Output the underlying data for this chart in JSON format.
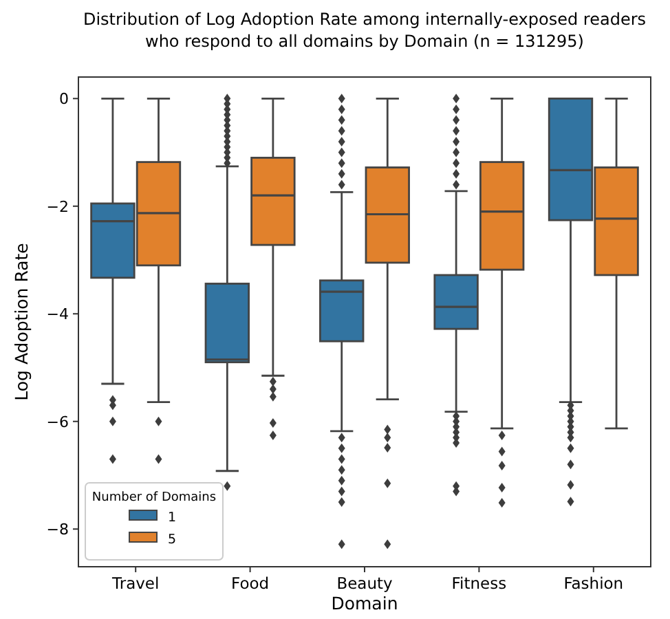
{
  "chart_data": {
    "type": "box",
    "title": "Distribution of Log Adoption Rate among internally-exposed readers\nwho respond to all domains by Domain (n = 131295)",
    "xlabel": "Domain",
    "ylabel": "Log Adoption Rate",
    "legend_title": "Number of Domains",
    "legend": "bottom left",
    "categories": [
      "Travel",
      "Food",
      "Beauty",
      "Fitness",
      "Fashion"
    ],
    "ylim": [
      -8.7,
      0.4
    ],
    "yticks": [
      0,
      {
        "value": -2,
        "label": "−2"
      },
      {
        "value": -4,
        "label": "−4"
      },
      {
        "value": -6,
        "label": "−6"
      },
      {
        "value": -8,
        "label": "−8"
      }
    ],
    "series": [
      {
        "name": "1",
        "color": "#3274a1",
        "boxes": [
          {
            "low": -5.3,
            "q1": -3.33,
            "median": -2.28,
            "q3": -1.95,
            "high": 0,
            "outliers": [
              -5.6,
              -5.7,
              -6.0,
              -6.7
            ]
          },
          {
            "low": -6.92,
            "q1": -4.9,
            "median": -4.85,
            "q3": -3.44,
            "high": -1.26,
            "outliers": [
              0,
              -0.1,
              -0.2,
              -0.3,
              -0.4,
              -0.5,
              -0.6,
              -0.7,
              -0.8,
              -0.9,
              -1.0,
              -1.1,
              -1.2,
              -7.2
            ]
          },
          {
            "low": -6.18,
            "q1": -4.51,
            "median": -3.59,
            "q3": -3.38,
            "high": -1.74,
            "outliers": [
              0,
              -0.2,
              -0.4,
              -0.6,
              -0.8,
              -1.0,
              -1.2,
              -1.4,
              -1.6,
              -6.3,
              -6.5,
              -6.7,
              -6.9,
              -7.1,
              -7.3,
              -7.5,
              -8.28
            ]
          },
          {
            "low": -5.82,
            "q1": -4.28,
            "median": -3.87,
            "q3": -3.28,
            "high": -1.72,
            "outliers": [
              0,
              -0.2,
              -0.4,
              -0.6,
              -0.8,
              -1.0,
              -1.2,
              -1.4,
              -1.6,
              -5.9,
              -6.0,
              -6.1,
              -6.2,
              -6.3,
              -6.4,
              -7.2,
              -7.3
            ]
          },
          {
            "low": -5.64,
            "q1": -2.26,
            "median": -1.33,
            "q3": 0,
            "high": 0,
            "outliers": [
              -5.7,
              -5.8,
              -5.9,
              -6.0,
              -6.1,
              -6.2,
              -6.3,
              -6.5,
              -6.8,
              -7.18,
              -7.49
            ]
          }
        ]
      },
      {
        "name": "5",
        "color": "#e1812c",
        "boxes": [
          {
            "low": -5.64,
            "q1": -3.1,
            "median": -2.13,
            "q3": -1.18,
            "high": 0,
            "outliers": [
              -6.0,
              -6.7
            ]
          },
          {
            "low": -5.15,
            "q1": -2.72,
            "median": -1.8,
            "q3": -1.1,
            "high": 0,
            "outliers": [
              -5.26,
              -5.4,
              -5.54,
              -6.03,
              -6.26
            ]
          },
          {
            "low": -5.59,
            "q1": -3.05,
            "median": -2.15,
            "q3": -1.28,
            "high": 0,
            "outliers": [
              -6.15,
              -6.3,
              -6.49,
              -7.15,
              -8.28
            ]
          },
          {
            "low": -6.13,
            "q1": -3.18,
            "median": -2.1,
            "q3": -1.18,
            "high": 0,
            "outliers": [
              -6.26,
              -6.56,
              -6.82,
              -7.23,
              -7.51
            ]
          },
          {
            "low": -6.13,
            "q1": -3.28,
            "median": -2.23,
            "q3": -1.28,
            "high": 0
          }
        ]
      }
    ]
  }
}
